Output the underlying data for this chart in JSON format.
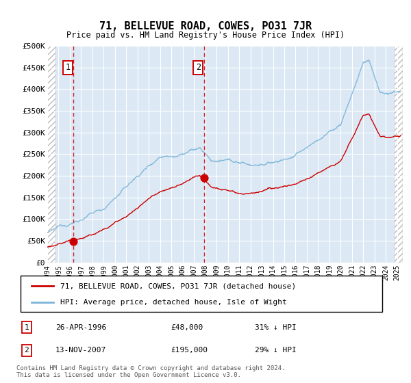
{
  "title": "71, BELLEVUE ROAD, COWES, PO31 7JR",
  "subtitle": "Price paid vs. HM Land Registry's House Price Index (HPI)",
  "hpi_color": "#7ab3d9",
  "price_color": "#cc0000",
  "marker1_date": 1996.32,
  "marker1_price": 48000,
  "marker2_date": 2007.87,
  "marker2_price": 195000,
  "ylim": [
    0,
    500000
  ],
  "xlim": [
    1994.0,
    2025.5
  ],
  "yticks": [
    0,
    50000,
    100000,
    150000,
    200000,
    250000,
    300000,
    350000,
    400000,
    450000,
    500000
  ],
  "ylabel_labels": [
    "£0",
    "£50K",
    "£100K",
    "£150K",
    "£200K",
    "£250K",
    "£300K",
    "£350K",
    "£400K",
    "£450K",
    "£500K"
  ],
  "xtick_years": [
    1994,
    1995,
    1996,
    1997,
    1998,
    1999,
    2000,
    2001,
    2002,
    2003,
    2004,
    2005,
    2006,
    2007,
    2008,
    2009,
    2010,
    2011,
    2012,
    2013,
    2014,
    2015,
    2016,
    2017,
    2018,
    2019,
    2020,
    2021,
    2022,
    2023,
    2024,
    2025
  ],
  "legend_label1": "71, BELLEVUE ROAD, COWES, PO31 7JR (detached house)",
  "legend_label2": "HPI: Average price, detached house, Isle of Wight",
  "annotation1_num": "1",
  "annotation1_date": "26-APR-1996",
  "annotation1_price": "£48,000",
  "annotation1_hpi": "31% ↓ HPI",
  "annotation2_num": "2",
  "annotation2_date": "13-NOV-2007",
  "annotation2_price": "£195,000",
  "annotation2_hpi": "29% ↓ HPI",
  "footer": "Contains HM Land Registry data © Crown copyright and database right 2024.\nThis data is licensed under the Open Government Licence v3.0.",
  "bg_color": "#dce9f5",
  "hatch_color": "#bbbbbb",
  "grid_color": "#ffffff"
}
